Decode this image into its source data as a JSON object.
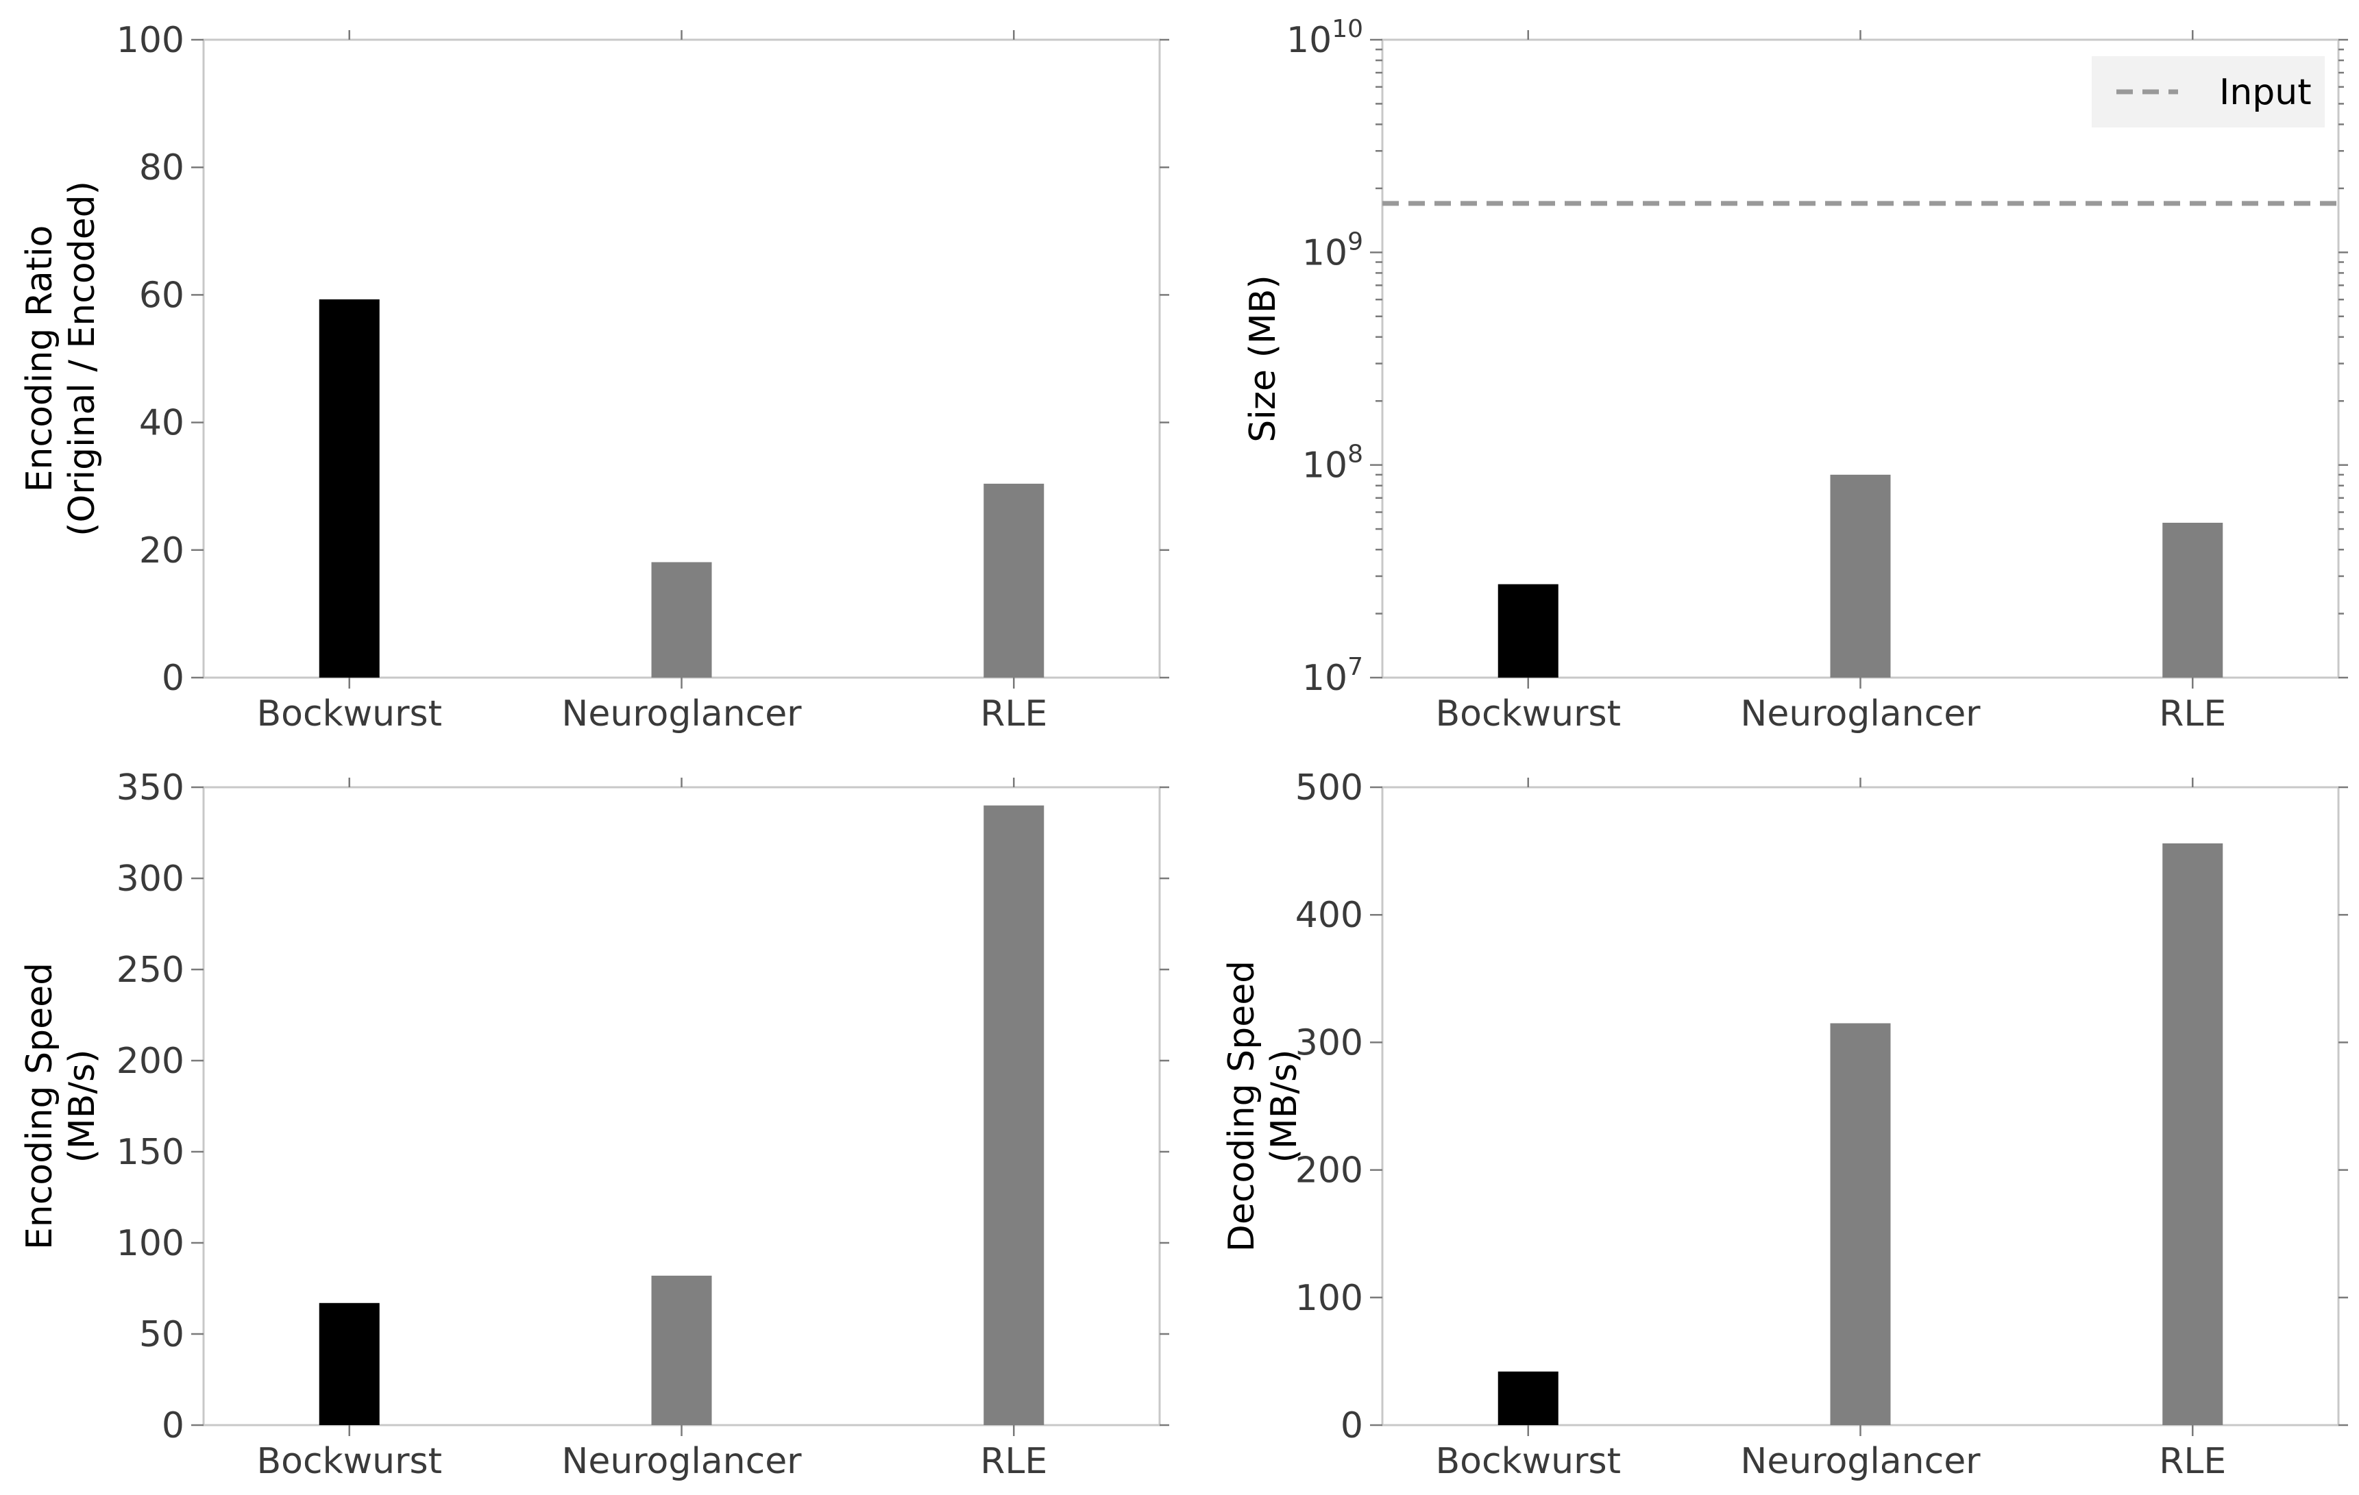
{
  "chart_data": [
    {
      "type": "bar",
      "categories": [
        "Bockwurst",
        "Neuroglancer",
        "RLE"
      ],
      "values": [
        59.3,
        18.1,
        30.4
      ],
      "xlabel": "",
      "ylabel": "Encoding Ratio\n(Original / Encoded)",
      "ylim": [
        0,
        100
      ],
      "yticks": [
        0,
        20,
        40,
        60,
        80,
        100
      ],
      "yscale": "linear",
      "grid": false,
      "bar_colors": [
        "#000000",
        "#808080",
        "#808080"
      ]
    },
    {
      "type": "bar",
      "categories": [
        "Bockwurst",
        "Neuroglancer",
        "RLE"
      ],
      "values": [
        27500000,
        90000000,
        53500000
      ],
      "xlabel": "",
      "ylabel": "Size (MB)",
      "ylim": [
        10000000,
        10000000000
      ],
      "yscale": "log",
      "yticks": [
        10000000,
        100000000,
        1000000000,
        10000000000
      ],
      "ytick_labels": [
        {
          "base": "10",
          "exp": "7"
        },
        {
          "base": "10",
          "exp": "8"
        },
        {
          "base": "10",
          "exp": "9"
        },
        {
          "base": "10",
          "exp": "10"
        }
      ],
      "reference_line": {
        "name": "Input",
        "value": 1700000000,
        "style": "dashed",
        "color": "#999999"
      },
      "legend": {
        "position": "top-right",
        "entries": [
          "Input"
        ]
      },
      "grid": false,
      "bar_colors": [
        "#000000",
        "#808080",
        "#808080"
      ]
    },
    {
      "type": "bar",
      "categories": [
        "Bockwurst",
        "Neuroglancer",
        "RLE"
      ],
      "values": [
        67,
        82,
        340
      ],
      "xlabel": "",
      "ylabel": "Encoding Speed\n(MB/s)",
      "ylim": [
        0,
        350
      ],
      "yticks": [
        0,
        50,
        100,
        150,
        200,
        250,
        300,
        350
      ],
      "yscale": "linear",
      "grid": false,
      "bar_colors": [
        "#000000",
        "#808080",
        "#808080"
      ]
    },
    {
      "type": "bar",
      "categories": [
        "Bockwurst",
        "Neuroglancer",
        "RLE"
      ],
      "values": [
        42,
        315,
        456
      ],
      "xlabel": "",
      "ylabel": "Decoding Speed\n(MB/s)",
      "ylim": [
        0,
        500
      ],
      "yticks": [
        0,
        100,
        200,
        300,
        400,
        500
      ],
      "yscale": "linear",
      "grid": false,
      "bar_colors": [
        "#000000",
        "#808080",
        "#808080"
      ]
    }
  ]
}
